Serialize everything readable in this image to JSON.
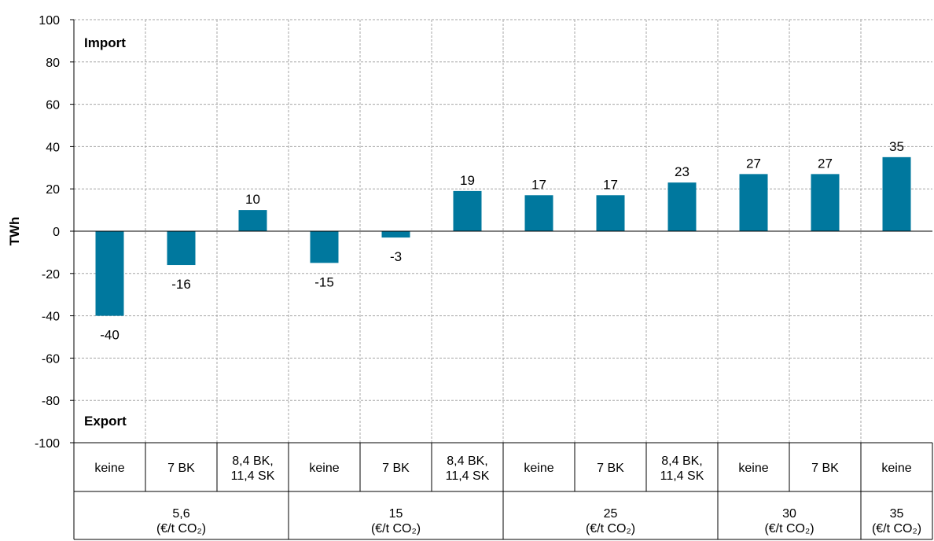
{
  "chart_data": {
    "type": "bar",
    "ylabel": "TWh",
    "ylim": [
      -100,
      100
    ],
    "yticks": [
      100,
      80,
      60,
      40,
      20,
      0,
      -20,
      -40,
      -60,
      -80,
      -100
    ],
    "grid": true,
    "color": "#00789e",
    "annotations": {
      "top": "Import",
      "bottom": "Export"
    },
    "categories": [
      "keine",
      "7 BK",
      "8,4 BK,\n11,4 SK",
      "keine",
      "7 BK",
      "8,4 BK,\n11,4 SK",
      "keine",
      "7 BK",
      "8,4 BK,\n11,4 SK",
      "keine",
      "7 BK",
      "keine"
    ],
    "values": [
      -40,
      -16,
      10,
      -15,
      -3,
      19,
      17,
      17,
      23,
      27,
      27,
      35
    ],
    "groups": [
      {
        "label": "5,6",
        "unit": "(€/t CO₂)",
        "span": 3
      },
      {
        "label": "15",
        "unit": "(€/t CO₂)",
        "span": 3
      },
      {
        "label": "25",
        "unit": "(€/t CO₂)",
        "span": 3
      },
      {
        "label": "30",
        "unit": "(€/t CO₂)",
        "span": 2
      },
      {
        "label": "35",
        "unit": "(€/t CO₂)",
        "span": 1
      }
    ]
  }
}
